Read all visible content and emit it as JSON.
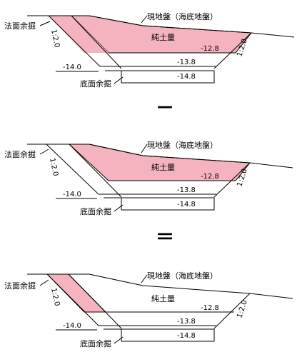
{
  "colors": {
    "fill": "#f4b3be",
    "line": "#000000",
    "background": "#ffffff"
  },
  "panels": [
    {
      "ground_label": "現地盤（海底地盤）",
      "fill_label": "純土量",
      "slope_excess_label": "法面余掘",
      "bottom_excess_label": "底面余掘",
      "level_fill": "-12.8",
      "level_bottom": "-13.8",
      "level_excess": "-14.8",
      "level_left": "-14.0",
      "slope_left": "1:2.0",
      "slope_right": "1:2.0"
    },
    {
      "ground_label": "現地盤（海底地盤）",
      "fill_label": "純土量",
      "slope_excess_label": "法面余掘",
      "bottom_excess_label": "底面余掘",
      "level_fill": "-12.8",
      "level_bottom": "-13.8",
      "level_excess": "-14.8",
      "level_left": "-14.0",
      "slope_left": "1:2.0",
      "slope_right": "1:2.0"
    },
    {
      "ground_label": "現地盤（海底地盤）",
      "fill_label": "純土量",
      "slope_excess_label": "法面余掘",
      "bottom_excess_label": "底面余掘",
      "level_fill": "-12.8",
      "level_bottom": "-13.8",
      "level_excess": "-14.8",
      "level_left": "-14.0",
      "slope_left": "1:2.0",
      "slope_right": "1:2.0"
    }
  ],
  "operators": {
    "minus": "－",
    "equals": "＝"
  }
}
